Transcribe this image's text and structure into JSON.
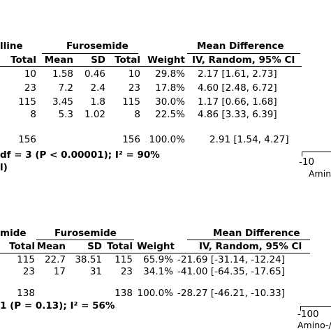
{
  "chart_data": [
    {
      "type": "table",
      "group_headers": {
        "left": "lline",
        "furosemide": "Furosemide",
        "md": "Mean Difference"
      },
      "columns": [
        "Total",
        "Mean",
        "SD",
        "Total",
        "Weight",
        "IV, Random, 95% CI"
      ],
      "rows": [
        {
          "total1": "10",
          "mean": "1.58",
          "sd": "0.46",
          "total2": "10",
          "weight": "29.8%",
          "ci": "2.17 [1.61, 2.73]"
        },
        {
          "total1": "23",
          "mean": "7.2",
          "sd": "2.4",
          "total2": "23",
          "weight": "17.8%",
          "ci": "4.60 [2.48, 6.72]"
        },
        {
          "total1": "115",
          "mean": "3.45",
          "sd": "1.8",
          "total2": "115",
          "weight": "30.0%",
          "ci": "1.17 [0.66, 1.68]"
        },
        {
          "total1": "8",
          "mean": "5.3",
          "sd": "1.02",
          "total2": "8",
          "weight": "22.5%",
          "ci": "4.86 [3.33, 6.39]"
        }
      ],
      "total": {
        "total1": "156",
        "total2": "156",
        "weight": "100.0%",
        "ci": "2.91 [1.54, 4.27]"
      },
      "heterogeneity": "df = 3 (P < 0.00001); I² = 90%",
      "overall_effect": "l)",
      "axis": {
        "tick_label": "-10",
        "label": "Amin"
      }
    },
    {
      "type": "table",
      "group_headers": {
        "left": "mide",
        "furosemide": "Furosemide",
        "md": "Mean Difference"
      },
      "columns": [
        "Total",
        "Mean",
        "SD",
        "Total",
        "Weight",
        "IV, Random, 95% CI"
      ],
      "rows": [
        {
          "total1": "115",
          "mean": "22.7",
          "sd": "38.51",
          "total2": "115",
          "weight": "65.9%",
          "ci": "-21.69 [-31.14, -12.24]"
        },
        {
          "total1": "23",
          "mean": "17",
          "sd": "31",
          "total2": "23",
          "weight": "34.1%",
          "ci": "-41.00 [-64.35, -17.65]"
        }
      ],
      "total": {
        "total1": "138",
        "total2": "138",
        "weight": "100.0%",
        "ci": "-28.27 [-46.21, -10.33]"
      },
      "heterogeneity": "1 (P = 0.13); I² = 56%",
      "axis": {
        "tick_label": "-100",
        "label": "Amino-/T"
      }
    }
  ]
}
